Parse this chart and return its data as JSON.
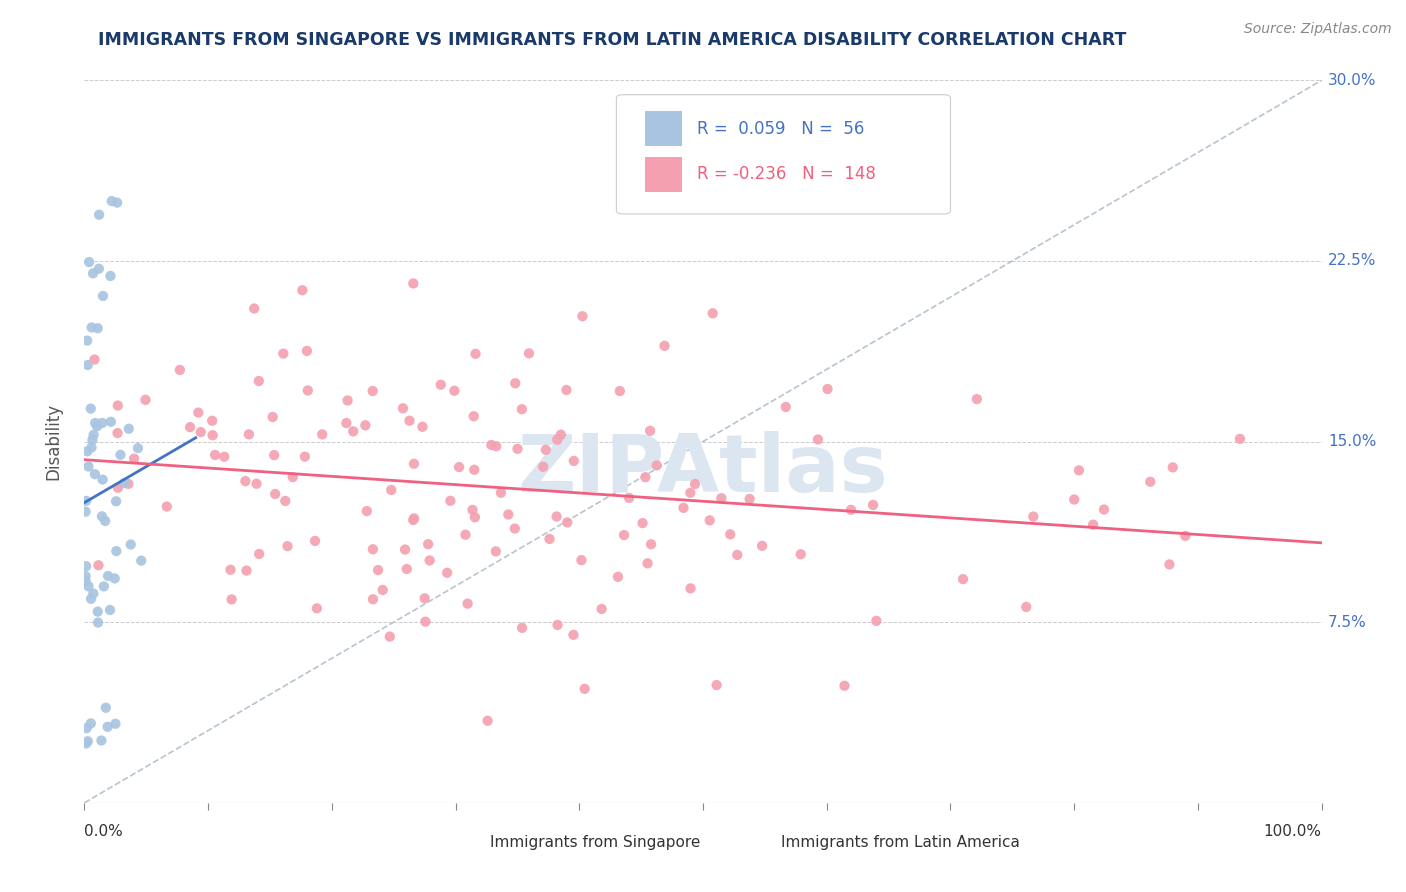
{
  "title": "IMMIGRANTS FROM SINGAPORE VS IMMIGRANTS FROM LATIN AMERICA DISABILITY CORRELATION CHART",
  "source_text": "Source: ZipAtlas.com",
  "ylabel": "Disability",
  "x_min": 0.0,
  "x_max": 1.0,
  "y_min": 0.0,
  "y_max": 0.3,
  "y_ticks": [
    0.075,
    0.15,
    0.225,
    0.3
  ],
  "y_tick_labels": [
    "7.5%",
    "15.0%",
    "22.5%",
    "30.0%"
  ],
  "singapore_R": 0.059,
  "singapore_N": 56,
  "latinam_R": -0.236,
  "latinam_N": 148,
  "singapore_color": "#a8c4e0",
  "latinam_color": "#f4a0b0",
  "singapore_line_color": "#4472c4",
  "latinam_line_color": "#f06080",
  "diagonal_color": "#b8c4d0",
  "bg_color": "#ffffff",
  "title_color": "#1a3a6b",
  "watermark_color": "#dce6f0",
  "sing_seed": 10,
  "lat_seed": 20
}
